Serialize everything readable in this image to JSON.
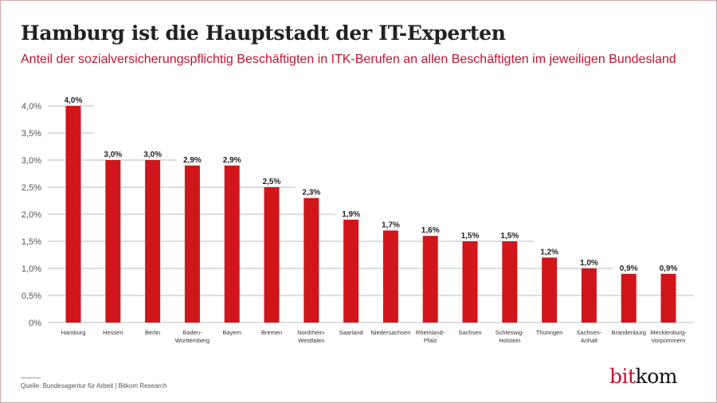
{
  "header": {
    "title": "Hamburg ist die Hauptstadt der IT-Experten",
    "subtitle": "Anteil der sozialversicherungspflichtig Beschäftigten in ITK-Berufen an allen Beschäftigten im jeweiligen Bundesland"
  },
  "footer": {
    "source": "Quelle: Bundesagentur für Arbeit | Bitkom Research",
    "logo_part1": "bit",
    "logo_part2": "kom"
  },
  "colors": {
    "bar": "#d0151b",
    "accent": "#c8102e",
    "grid": "#bdbdbd"
  },
  "chart_data": {
    "type": "bar",
    "title": "Hamburg ist die Hauptstadt der IT-Experten",
    "subtitle": "Anteil der sozialversicherungspflichtig Beschäftigten in ITK-Berufen an allen Beschäftigten im jeweiligen Bundesland",
    "xlabel": "",
    "ylabel": "",
    "ylim": [
      0,
      4.0
    ],
    "yticks": [
      0,
      0.5,
      1.0,
      1.5,
      2.0,
      2.5,
      3.0,
      3.5,
      4.0
    ],
    "ytick_labels": [
      "0%",
      "0,5%",
      "1,0%",
      "1,5%",
      "2,0%",
      "2,5%",
      "3,0%",
      "3,5%",
      "4,0%"
    ],
    "grid": true,
    "categories": [
      [
        "Hamburg"
      ],
      [
        "Hessen"
      ],
      [
        "Berlin"
      ],
      [
        "Baden-",
        "Württemberg"
      ],
      [
        "Bayern"
      ],
      [
        "Bremen"
      ],
      [
        "Nordrhein-",
        "Westfalen"
      ],
      [
        "Saarland"
      ],
      [
        "Niedersachsen"
      ],
      [
        "Rheinland-",
        "Pfalz"
      ],
      [
        "Sachsen"
      ],
      [
        "Schleswig-",
        "Holstein"
      ],
      [
        "Thüringen"
      ],
      [
        "Sachsen-",
        "Anhalt"
      ],
      [
        "Brandenburg"
      ],
      [
        "Mecklenburg-",
        "Vorpommern"
      ]
    ],
    "values": [
      4.0,
      3.0,
      3.0,
      2.9,
      2.9,
      2.5,
      2.3,
      1.9,
      1.7,
      1.6,
      1.5,
      1.5,
      1.2,
      1.0,
      0.9,
      0.9
    ],
    "value_labels": [
      "4,0%",
      "3,0%",
      "3,0%",
      "2,9%",
      "2,9%",
      "2,5%",
      "2,3%",
      "1,9%",
      "1,7%",
      "1,6%",
      "1,5%",
      "1,5%",
      "1,2%",
      "1,0%",
      "0,9%",
      "0,9%"
    ]
  }
}
